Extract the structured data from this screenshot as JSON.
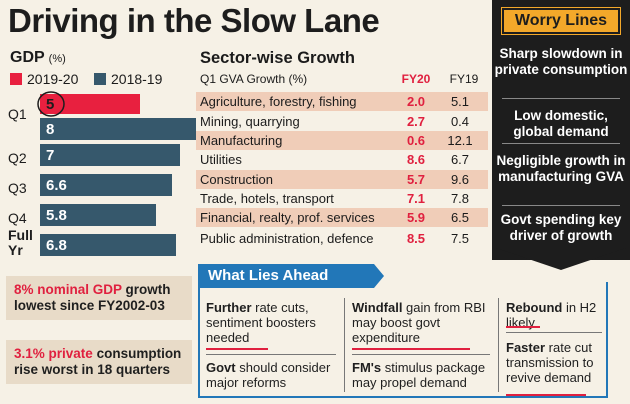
{
  "title": "Driving in the Slow Lane",
  "gdp": {
    "heading": "GDP",
    "unit": "(%)",
    "legend": [
      {
        "label": "2019-20",
        "color": "#e8203f"
      },
      {
        "label": "2018-19",
        "color": "#36586c"
      }
    ]
  },
  "chart_data": {
    "type": "bar",
    "orientation": "horizontal",
    "categories": [
      "Q1",
      "Q2",
      "Q3",
      "Q4",
      "Full Yr"
    ],
    "series": [
      {
        "name": "2019-20",
        "color": "#e8203f",
        "values": [
          5,
          null,
          null,
          null,
          null
        ]
      },
      {
        "name": "2018-19",
        "color": "#36586c",
        "values": [
          8,
          7,
          6.6,
          5.8,
          6.8
        ]
      }
    ],
    "xlim": [
      0,
      8.5
    ]
  },
  "notes": [
    {
      "highlight": "8% nominal GDP",
      "text": "growth lowest since FY2002-03"
    },
    {
      "highlight": "3.1% private",
      "text": "consumption rise worst in 18 quarters"
    }
  ],
  "sector": {
    "heading": "Sector-wise Growth",
    "subheading": "Q1 GVA Growth (%)",
    "col_fy20": "FY20",
    "col_fy19": "FY19",
    "rows": [
      {
        "name": "Agriculture, forestry, fishing",
        "fy20": "2.0",
        "fy19": "5.1",
        "shade": true
      },
      {
        "name": "Mining, quarrying",
        "fy20": "2.7",
        "fy19": "0.4",
        "shade": false
      },
      {
        "name": "Manufacturing",
        "fy20": "0.6",
        "fy19": "12.1",
        "shade": true
      },
      {
        "name": "Utilities",
        "fy20": "8.6",
        "fy19": "6.7",
        "shade": false
      },
      {
        "name": "Construction",
        "fy20": "5.7",
        "fy19": "9.6",
        "shade": true
      },
      {
        "name": "Trade, hotels, transport",
        "fy20": "7.1",
        "fy19": "7.8",
        "shade": false
      },
      {
        "name": "Financial, realty, prof. services",
        "fy20": "5.9",
        "fy19": "6.5",
        "shade": true
      },
      {
        "name": "Public administration, defence",
        "fy20": "8.5",
        "fy19": "7.5",
        "shade": false
      }
    ]
  },
  "worry": {
    "title": "Worry Lines",
    "items": [
      "Sharp slowdown in private consumption",
      "Low domestic, global demand",
      "Negligible growth in manufacturing GVA",
      "Govt spending key driver of growth"
    ]
  },
  "ahead": {
    "title": "What Lies Ahead",
    "items": [
      {
        "bold": "Further",
        "text": " rate cuts, sentiment boosters needed"
      },
      {
        "bold": "Govt",
        "text": " should consider major reforms"
      },
      {
        "bold": "Windfall",
        "text": " gain from RBI may boost govt expenditure"
      },
      {
        "bold": "FM's",
        "text": " stimulus package may propel demand"
      },
      {
        "bold": "Rebound",
        "text": " in H2 likely"
      },
      {
        "bold": "Faster",
        "text": " rate cut transmission to revive demand"
      }
    ]
  }
}
